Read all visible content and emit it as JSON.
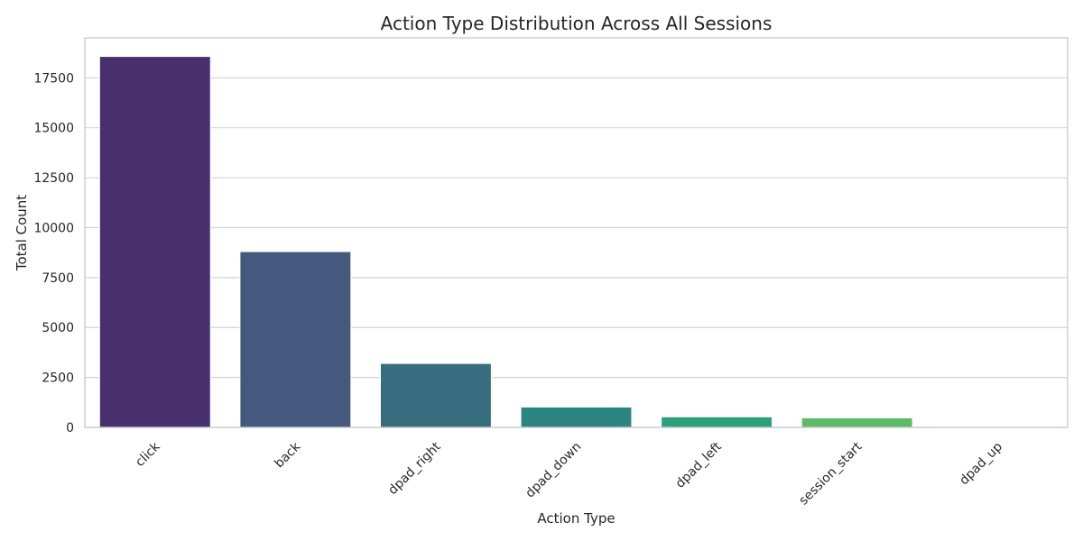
{
  "chart_data": {
    "type": "bar",
    "title": "Action Type Distribution Across All Sessions",
    "xlabel": "Action Type",
    "ylabel": "Total Count",
    "categories": [
      "click",
      "back",
      "dpad_right",
      "dpad_down",
      "dpad_left",
      "session_start",
      "dpad_up"
    ],
    "values": [
      18570,
      8800,
      3200,
      1020,
      530,
      480,
      40
    ],
    "colors": [
      "#48306f",
      "#45587e",
      "#376e7f",
      "#2d8581",
      "#2e9f7b",
      "#5fba67",
      "#9ed14a"
    ],
    "ylim": [
      0,
      19500
    ],
    "yticks": [
      0,
      2500,
      5000,
      7500,
      10000,
      12500,
      15000,
      17500
    ],
    "ytick_labels": [
      "0",
      "2500",
      "5000",
      "7500",
      "10000",
      "12500",
      "15000",
      "17500"
    ],
    "grid": "horizontal",
    "legend": "none"
  }
}
